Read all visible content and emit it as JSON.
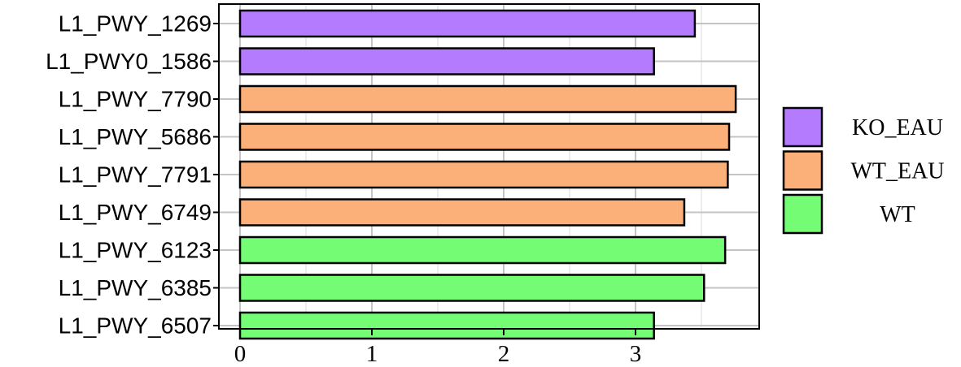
{
  "chart_data": {
    "type": "bar",
    "orientation": "horizontal",
    "categories": [
      "L1_PWY_1269",
      "L1_PWY0_1586",
      "L1_PWY_7790",
      "L1_PWY_5686",
      "L1_PWY_7791",
      "L1_PWY_6749",
      "L1_PWY_6123",
      "L1_PWY_6385",
      "L1_PWY_6507"
    ],
    "values": [
      3.45,
      3.14,
      3.76,
      3.71,
      3.7,
      3.37,
      3.68,
      3.52,
      3.14
    ],
    "groups": [
      "KO_EAU",
      "KO_EAU",
      "WT_EAU",
      "WT_EAU",
      "WT_EAU",
      "WT_EAU",
      "WT",
      "WT",
      "WT"
    ],
    "xticks": [
      "0",
      "1",
      "2",
      "3"
    ],
    "xlim": [
      0,
      3.9
    ],
    "grid": true,
    "legend": {
      "position": "right",
      "items": [
        {
          "label": "KO_EAU",
          "color": "#b57bff"
        },
        {
          "label": "WT_EAU",
          "color": "#fcb079"
        },
        {
          "label": "WT",
          "color": "#75fc75"
        }
      ]
    },
    "title": "",
    "xlabel": "",
    "ylabel": ""
  }
}
